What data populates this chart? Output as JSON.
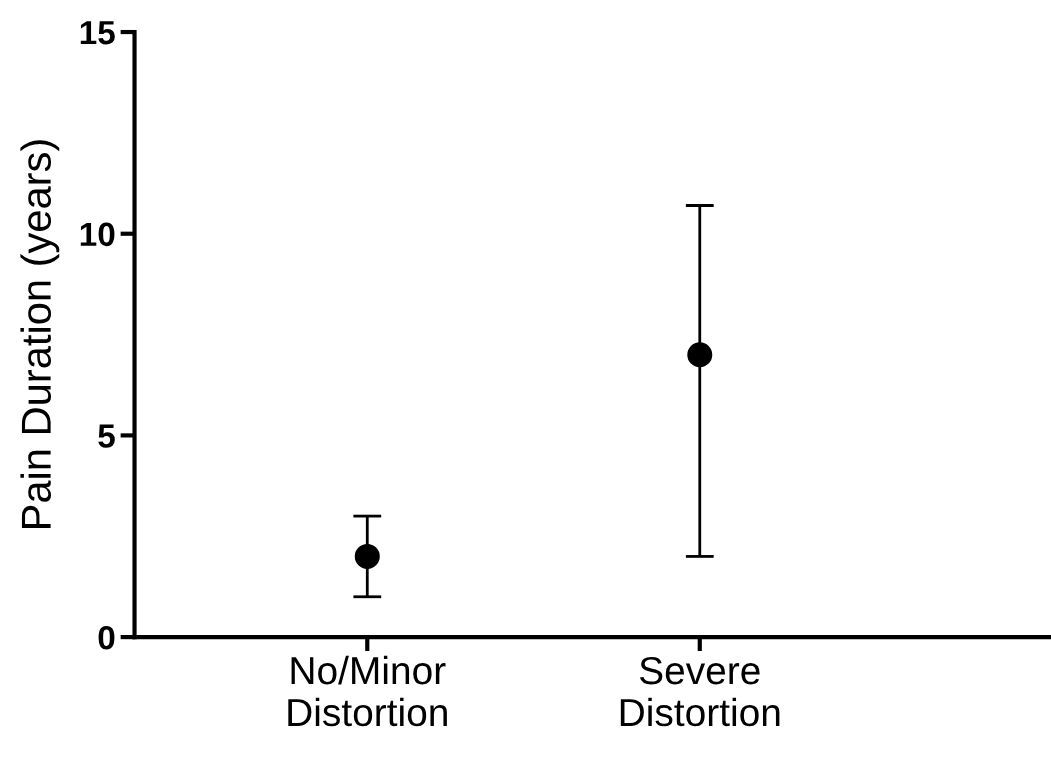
{
  "chart_data": {
    "type": "scatter",
    "ylabel": "Pain Duration (years)",
    "categories": [
      "No/Minor\nDistortion",
      "Severe\nDistortion"
    ],
    "values": [
      2,
      7
    ],
    "errors": [
      [
        1,
        3
      ],
      [
        2,
        10.7
      ]
    ],
    "color": "#000000",
    "marker": "circle",
    "ylim": [
      0,
      15
    ],
    "yticks": [
      0,
      5,
      10,
      15
    ],
    "grid": false,
    "legend": false
  }
}
